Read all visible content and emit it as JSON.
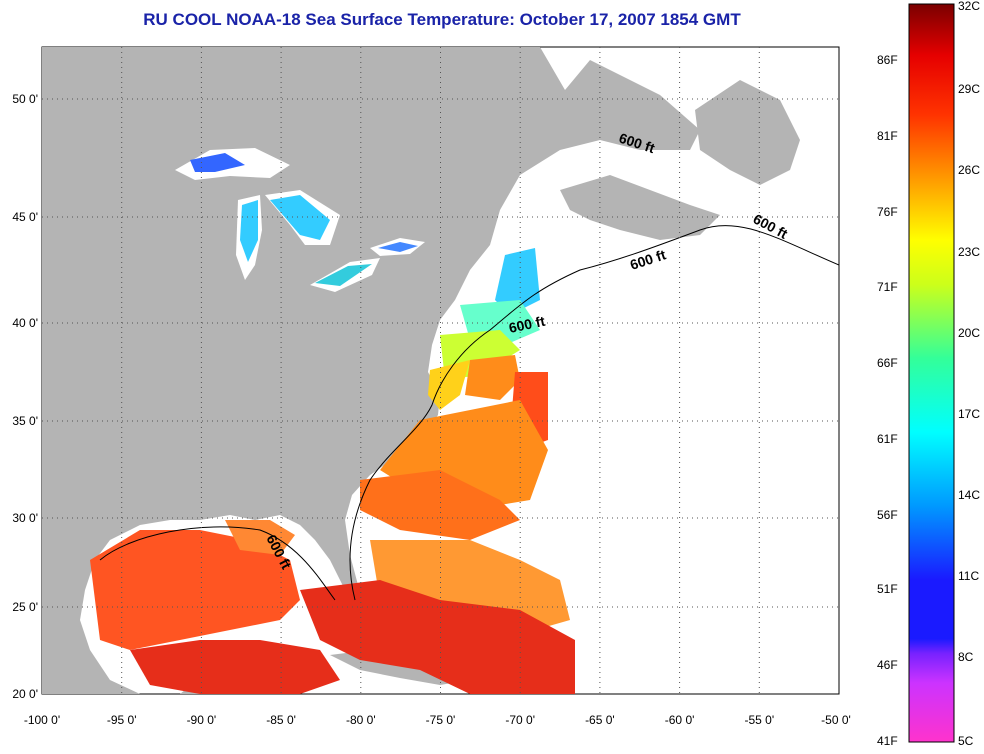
{
  "title": "RU COOL  NOAA-18  Sea Surface Temperature:  October 17, 2007 1854 GMT",
  "map": {
    "region": "US East Coast / Gulf of Mexico / Caribbean",
    "lon_range": [
      -100,
      -50
    ],
    "lat_range": [
      20,
      52.5
    ],
    "grid": true,
    "land_color": "#b4b4b4",
    "no_data_color": "#ffffff",
    "lon_ticks": [
      "-100 0'",
      "-95 0'",
      "-90 0'",
      "-85 0'",
      "-80 0'",
      "-75 0'",
      "-70 0'",
      "-65 0'",
      "-60 0'",
      "-55 0'",
      "-50 0'"
    ],
    "lat_ticks": [
      "50 0'",
      "45 0'",
      "40 0'",
      "35 0'",
      "30 0'",
      "25 0'",
      "20 0'"
    ],
    "contour_label": "600 ft",
    "contour_labels": [
      "600 ft",
      "600 ft",
      "600 ft",
      "600 ft",
      "600 ft"
    ]
  },
  "colorbar": {
    "fahrenheit": [
      "86F",
      "81F",
      "76F",
      "71F",
      "66F",
      "61F",
      "56F",
      "51F",
      "46F",
      "41F"
    ],
    "celsius": [
      "32C",
      "29C",
      "26C",
      "23C",
      "20C",
      "17C",
      "14C",
      "11C",
      "8C",
      "5C"
    ],
    "range_c": [
      5,
      32
    ],
    "colors": [
      "#ff33cc",
      "#9933ff",
      "#1a1aff",
      "#0080ff",
      "#00e6ff",
      "#33ff99",
      "#b3ff1a",
      "#ffff00",
      "#ffb300",
      "#ff6600",
      "#ff1a00",
      "#b30000",
      "#800000"
    ]
  }
}
